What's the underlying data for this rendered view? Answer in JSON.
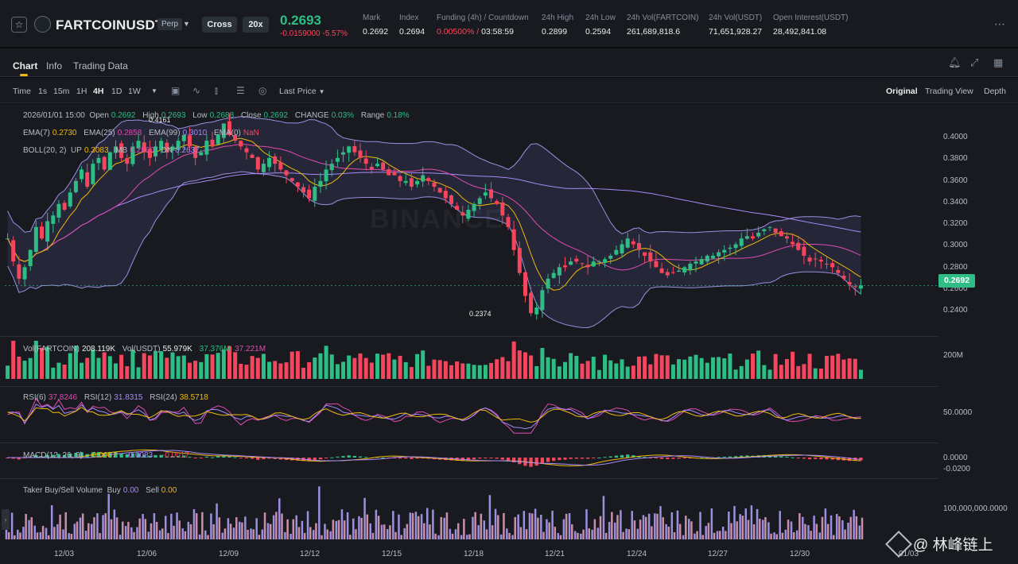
{
  "ticker": {
    "symbol": "FARTCOINUSDT",
    "contract_type": "Perp",
    "margin_mode": "Cross",
    "leverage": "20x",
    "last_price": "0.2693",
    "change": "-0.0159000 -5.57%",
    "stats": [
      {
        "label": "Mark",
        "value": "0.2692"
      },
      {
        "label": "Index",
        "value": "0.2694"
      },
      {
        "label": "Funding (4h) / Countdown",
        "value": "0.00500%",
        "countdown": "03:58:59"
      },
      {
        "label": "24h High",
        "value": "0.2899"
      },
      {
        "label": "24h Low",
        "value": "0.2594"
      },
      {
        "label": "24h Vol(FARTCOIN)",
        "value": "261,689,818.6"
      },
      {
        "label": "24h Vol(USDT)",
        "value": "71,651,928.27"
      },
      {
        "label": "Open Interest(USDT)",
        "value": "28,492,841.08"
      }
    ]
  },
  "tabs": [
    "Chart",
    "Info",
    "Trading Data"
  ],
  "toolbar": {
    "intervals": [
      "Time",
      "1s",
      "15m",
      "1H",
      "4H",
      "1D",
      "1W"
    ],
    "active_interval": "4H",
    "price_type": "Last Price",
    "views": [
      "Original",
      "Trading View",
      "Depth"
    ],
    "active_view": "Original"
  },
  "legend": {
    "ohlc": {
      "date": "2026/01/01 15:00",
      "open_label": "Open",
      "open": "0.2692",
      "high_label": "High",
      "high": "0.2693",
      "low_label": "Low",
      "low": "0.2688",
      "close_label": "Close",
      "close": "0.2692",
      "change_label": "CHANGE",
      "change": "0.03%",
      "range_label": "Range",
      "range": "0.18%"
    },
    "ema": {
      "ema7_label": "EMA(7)",
      "ema7": "0.2730",
      "ema25_label": "EMA(25)",
      "ema25": "0.2858",
      "ema99_label": "EMA(99)",
      "ema99": "0.3010",
      "ema0_label": "EMA(0)",
      "ema0": "NaN"
    },
    "boll": {
      "label": "BOLL(20, 2)",
      "up_label": "UP",
      "up": "0.3083",
      "mb_label": "MB",
      "mb": "0.2860",
      "dn_label": "DN",
      "dn": "0.2637"
    },
    "vol": {
      "label": "Vol(FARTCOIN)",
      "coin": "208.119K",
      "usdt_label": "Vol(USDT)",
      "usdt": "55.979K",
      "ma1": "37.376M",
      "ma2": "37.221M"
    },
    "rsi": {
      "rsi6_label": "RSI(6)",
      "rsi6": "37.8246",
      "rsi12_label": "RSI(12)",
      "rsi12": "31.8315",
      "rsi24_label": "RSI(24)",
      "rsi24": "38.5718"
    },
    "macd": {
      "label": "MACD(12, 26, 9)",
      "dif": "-0.0067",
      "dea": "-0.0083",
      "hist": "-0.0017"
    },
    "taker": {
      "label": "Taker Buy/Sell Volume",
      "buy_label": "Buy",
      "buy": "0.00",
      "sell_label": "Sell",
      "sell": "0.00"
    }
  },
  "price_axis": [
    "0.4000",
    "0.3800",
    "0.3600",
    "0.3400",
    "0.3200",
    "0.3000",
    "0.2800",
    "0.2600",
    "0.2400"
  ],
  "current_price_tag": "0.2692",
  "low_marker": "0.2374",
  "high_marker": "0.4161",
  "vol_axis": "200M",
  "rsi_axis": "50.0000",
  "macd_axis": [
    "0.0000",
    "-0.0200"
  ],
  "taker_axis": "100,000,000.0000",
  "dates": [
    "12/03",
    "12/06",
    "12/09",
    "12/12",
    "12/15",
    "12/18",
    "12/21",
    "12/24",
    "12/27",
    "12/30",
    "01/03"
  ],
  "watermark_text": "@ 林峰链上",
  "exchange_watermark": "BINANCE",
  "colors": {
    "up": "#2ebd85",
    "down": "#f6465d",
    "accent": "#f0b90b",
    "bg": "#181a20"
  },
  "chart_data": {
    "type": "candlestick",
    "interval": "4H",
    "ylim": [
      0.23,
      0.42
    ],
    "closes": [
      0.31,
      0.29,
      0.275,
      0.285,
      0.3,
      0.32,
      0.31,
      0.325,
      0.33,
      0.34,
      0.335,
      0.35,
      0.36,
      0.37,
      0.355,
      0.375,
      0.38,
      0.37,
      0.385,
      0.39,
      0.38,
      0.375,
      0.39,
      0.395,
      0.385,
      0.38,
      0.39,
      0.395,
      0.385,
      0.39,
      0.395,
      0.4,
      0.39,
      0.38,
      0.385,
      0.395,
      0.39,
      0.4,
      0.41,
      0.4,
      0.395,
      0.39,
      0.385,
      0.38,
      0.37,
      0.375,
      0.38,
      0.375,
      0.37,
      0.365,
      0.36,
      0.355,
      0.35,
      0.345,
      0.355,
      0.36,
      0.37,
      0.375,
      0.38,
      0.385,
      0.39,
      0.385,
      0.38,
      0.375,
      0.37,
      0.375,
      0.37,
      0.365,
      0.365,
      0.36,
      0.36,
      0.355,
      0.36,
      0.365,
      0.36,
      0.355,
      0.35,
      0.345,
      0.34,
      0.335,
      0.33,
      0.335,
      0.34,
      0.345,
      0.35,
      0.345,
      0.34,
      0.33,
      0.32,
      0.3,
      0.28,
      0.26,
      0.245,
      0.25,
      0.265,
      0.275,
      0.28,
      0.285,
      0.285,
      0.29,
      0.29,
      0.288,
      0.285,
      0.29,
      0.29,
      0.292,
      0.295,
      0.3,
      0.305,
      0.31,
      0.305,
      0.3,
      0.295,
      0.29,
      0.285,
      0.28,
      0.278,
      0.28,
      0.282,
      0.285,
      0.288,
      0.29,
      0.292,
      0.295,
      0.295,
      0.298,
      0.3,
      0.302,
      0.305,
      0.31,
      0.312,
      0.31,
      0.315,
      0.318,
      0.32,
      0.315,
      0.312,
      0.31,
      0.305,
      0.3,
      0.295,
      0.29,
      0.292,
      0.29,
      0.288,
      0.285,
      0.28,
      0.275,
      0.27,
      0.268,
      0.2692
    ]
  }
}
